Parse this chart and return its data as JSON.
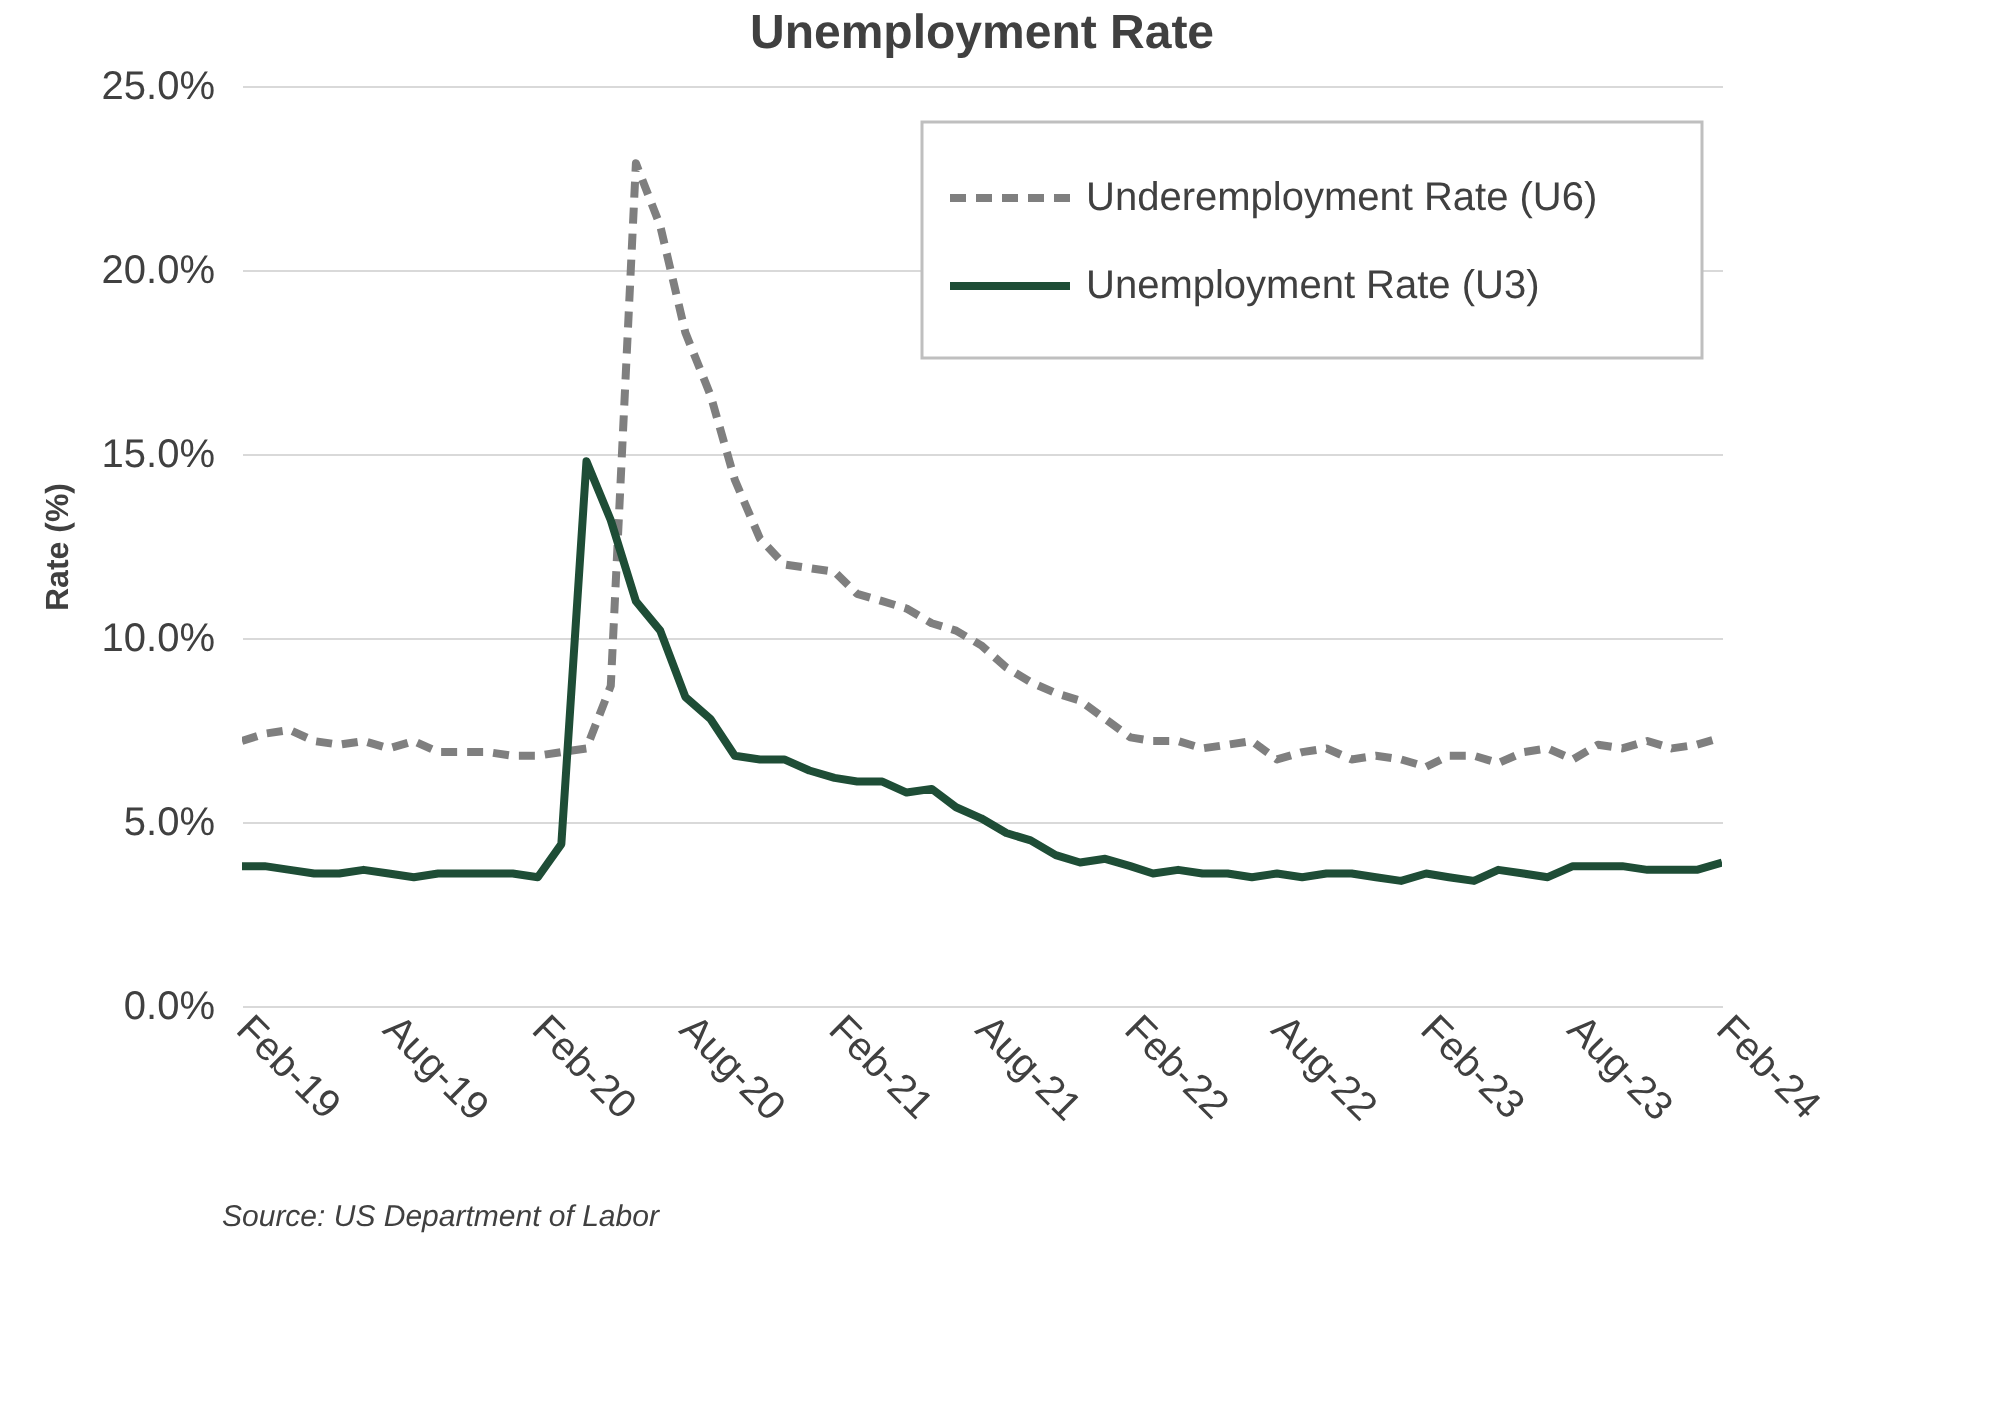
{
  "chart_data": {
    "type": "line",
    "title": "Unemployment Rate",
    "ylabel": "Rate (%)",
    "x": [
      "2019-02",
      "2019-03",
      "2019-04",
      "2019-05",
      "2019-06",
      "2019-07",
      "2019-08",
      "2019-09",
      "2019-10",
      "2019-11",
      "2019-12",
      "2020-01",
      "2020-02",
      "2020-03",
      "2020-04",
      "2020-05",
      "2020-06",
      "2020-07",
      "2020-08",
      "2020-09",
      "2020-10",
      "2020-11",
      "2020-12",
      "2021-01",
      "2021-02",
      "2021-03",
      "2021-04",
      "2021-05",
      "2021-06",
      "2021-07",
      "2021-08",
      "2021-09",
      "2021-10",
      "2021-11",
      "2021-12",
      "2022-01",
      "2022-02",
      "2022-03",
      "2022-04",
      "2022-05",
      "2022-06",
      "2022-07",
      "2022-08",
      "2022-09",
      "2022-10",
      "2022-11",
      "2022-12",
      "2023-01",
      "2023-02",
      "2023-03",
      "2023-04",
      "2023-05",
      "2023-06",
      "2023-07",
      "2023-08",
      "2023-09",
      "2023-10",
      "2023-11",
      "2023-12",
      "2024-01",
      "2024-02"
    ],
    "series": [
      {
        "name": "Underemployment Rate (U6)",
        "color": "#7f7f7f",
        "line_style": "dashed",
        "values": [
          7.2,
          7.4,
          7.5,
          7.2,
          7.1,
          7.2,
          7.0,
          7.2,
          6.9,
          6.9,
          6.9,
          6.8,
          6.8,
          6.9,
          7.0,
          8.7,
          22.9,
          21.2,
          18.3,
          16.6,
          14.3,
          12.7,
          12.0,
          11.9,
          11.8,
          11.2,
          11.0,
          10.8,
          10.4,
          10.2,
          9.8,
          9.2,
          8.8,
          8.5,
          8.3,
          7.8,
          7.3,
          7.2,
          7.2,
          7.0,
          7.1,
          7.2,
          6.7,
          6.9,
          7.0,
          6.7,
          6.8,
          6.7,
          6.5,
          6.8,
          6.8,
          6.6,
          6.9,
          7.0,
          6.7,
          7.1,
          7.0,
          7.2,
          7.0,
          7.1,
          7.3
        ]
      },
      {
        "name": "Unemployment Rate (U3)",
        "color": "#1e4d36",
        "line_style": "solid",
        "values": [
          3.8,
          3.8,
          3.7,
          3.6,
          3.6,
          3.7,
          3.6,
          3.5,
          3.6,
          3.6,
          3.6,
          3.6,
          3.5,
          4.4,
          14.8,
          13.2,
          11.0,
          10.2,
          8.4,
          7.8,
          6.8,
          6.7,
          6.7,
          6.4,
          6.2,
          6.1,
          6.1,
          5.8,
          5.9,
          5.4,
          5.1,
          4.7,
          4.5,
          4.1,
          3.9,
          4.0,
          3.8,
          3.6,
          3.7,
          3.6,
          3.6,
          3.5,
          3.6,
          3.5,
          3.6,
          3.6,
          3.5,
          3.4,
          3.6,
          3.5,
          3.4,
          3.7,
          3.6,
          3.5,
          3.8,
          3.8,
          3.8,
          3.7,
          3.7,
          3.7,
          3.9
        ]
      }
    ],
    "xlim": [
      "2019-02",
      "2024-02"
    ],
    "xticks": [
      {
        "value": "2019-02",
        "label": "Feb-19"
      },
      {
        "value": "2019-08",
        "label": "Aug-19"
      },
      {
        "value": "2020-02",
        "label": "Feb-20"
      },
      {
        "value": "2020-08",
        "label": "Aug-20"
      },
      {
        "value": "2021-02",
        "label": "Feb-21"
      },
      {
        "value": "2021-08",
        "label": "Aug-21"
      },
      {
        "value": "2022-02",
        "label": "Feb-22"
      },
      {
        "value": "2022-08",
        "label": "Aug-22"
      },
      {
        "value": "2023-02",
        "label": "Feb-23"
      },
      {
        "value": "2023-08",
        "label": "Aug-23"
      },
      {
        "value": "2024-02",
        "label": "Feb-24"
      }
    ],
    "ylim": [
      0,
      25
    ],
    "yticks": [
      {
        "value": 0,
        "label": "0.0%"
      },
      {
        "value": 5,
        "label": "5.0%"
      },
      {
        "value": 10,
        "label": "10.0%"
      },
      {
        "value": 15,
        "label": "15.0%"
      },
      {
        "value": 20,
        "label": "20.0%"
      },
      {
        "value": 25,
        "label": "25.0%"
      }
    ],
    "grid": "y",
    "legend": "top right",
    "annotations": [
      "Source: US Department of Labor"
    ]
  }
}
